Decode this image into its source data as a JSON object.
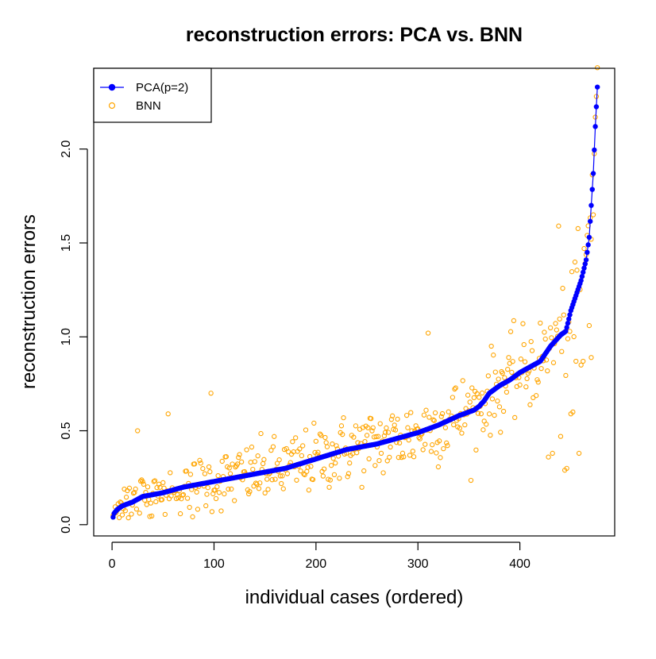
{
  "chart_data": {
    "type": "scatter",
    "title": "reconstruction errors: PCA vs. BNN",
    "xlabel": "individual cases (ordered)",
    "ylabel": "reconstruction errors",
    "xlim": [
      -18,
      493
    ],
    "ylim": [
      -0.06,
      2.43
    ],
    "x_ticks": [
      0,
      100,
      200,
      300,
      400
    ],
    "x_tick_labels": [
      "0",
      "100",
      "200",
      "300",
      "400"
    ],
    "y_ticks": [
      0.0,
      0.5,
      1.0,
      1.5,
      2.0
    ],
    "y_tick_labels": [
      "0.0",
      "0.5",
      "1.0",
      "1.5",
      "2.0"
    ],
    "grid": false,
    "legend_position": "top-left",
    "n_points": 476,
    "series": [
      {
        "name": "PCA(p=2)",
        "style": "line-with-filled-points",
        "color": "#0000ff",
        "x_range": [
          1,
          476
        ],
        "y_profile_x": [
          1,
          2,
          5,
          10,
          20,
          30,
          50,
          70,
          100,
          130,
          150,
          170,
          200,
          230,
          260,
          280,
          300,
          320,
          340,
          355,
          360,
          365,
          370,
          380,
          390,
          400,
          410,
          420,
          425,
          430,
          440,
          445,
          446,
          450,
          455,
          460,
          465,
          468,
          470,
          472,
          474,
          476
        ],
        "y_profile_y": [
          0.04,
          0.06,
          0.08,
          0.1,
          0.12,
          0.15,
          0.17,
          0.2,
          0.23,
          0.26,
          0.28,
          0.3,
          0.35,
          0.4,
          0.43,
          0.46,
          0.49,
          0.53,
          0.58,
          0.61,
          0.63,
          0.66,
          0.7,
          0.74,
          0.77,
          0.81,
          0.84,
          0.87,
          0.91,
          0.95,
          1.01,
          1.03,
          1.05,
          1.14,
          1.22,
          1.3,
          1.41,
          1.53,
          1.7,
          1.87,
          2.12,
          2.33
        ]
      },
      {
        "name": "BNN",
        "style": "open-points",
        "color": "#ffa500",
        "x_range": [
          1,
          476
        ],
        "noise_sd": 0.085,
        "outliers": [
          {
            "x": 97,
            "y": 0.7
          },
          {
            "x": 25,
            "y": 0.5
          },
          {
            "x": 55,
            "y": 0.59
          },
          {
            "x": 310,
            "y": 1.02
          },
          {
            "x": 438,
            "y": 1.59
          },
          {
            "x": 444,
            "y": 0.29
          },
          {
            "x": 446,
            "y": 0.3
          },
          {
            "x": 432,
            "y": 0.38
          },
          {
            "x": 428,
            "y": 0.36
          },
          {
            "x": 440,
            "y": 0.47
          },
          {
            "x": 450,
            "y": 0.59
          },
          {
            "x": 452,
            "y": 0.6
          },
          {
            "x": 458,
            "y": 0.38
          },
          {
            "x": 472,
            "y": 1.65
          },
          {
            "x": 475,
            "y": 2.28
          },
          {
            "x": 474,
            "y": 2.17
          },
          {
            "x": 470,
            "y": 1.52
          },
          {
            "x": 466,
            "y": 1.54
          },
          {
            "x": 463,
            "y": 1.47
          },
          {
            "x": 455,
            "y": 0.87
          },
          {
            "x": 460,
            "y": 0.85
          },
          {
            "x": 462,
            "y": 0.87
          },
          {
            "x": 468,
            "y": 1.06
          },
          {
            "x": 470,
            "y": 0.89
          }
        ]
      }
    ]
  }
}
